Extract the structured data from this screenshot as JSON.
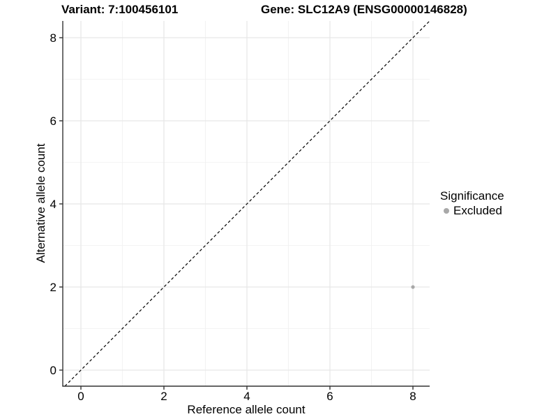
{
  "titles": {
    "variant": "Variant: 7:100456101",
    "gene": "Gene: SLC12A9 (ENSG00000146828)"
  },
  "chart_data": {
    "type": "scatter",
    "title": "Variant: 7:100456101",
    "subtitle": "Gene: SLC12A9 (ENSG00000146828)",
    "xlabel": "Reference allele count",
    "ylabel": "Alternative allele count",
    "xlim": [
      -0.437,
      8.403
    ],
    "ylim": [
      -0.387,
      8.403
    ],
    "xticks": [
      0,
      2,
      4,
      6,
      8
    ],
    "yticks": [
      0,
      2,
      4,
      6,
      8
    ],
    "minor_xticks": [
      1,
      3,
      5,
      7
    ],
    "minor_yticks": [
      1,
      3,
      5,
      7
    ],
    "grid": true,
    "reference_line": {
      "type": "identity",
      "style": "dashed",
      "color": "#000000"
    },
    "series": [
      {
        "name": "Excluded",
        "color": "#a8a8a8",
        "points": [
          {
            "x": 8,
            "y": 2
          }
        ]
      }
    ],
    "legend": {
      "title": "Significance",
      "position": "right",
      "items": [
        {
          "label": "Excluded",
          "color": "#a8a8a8"
        }
      ]
    },
    "colors": {
      "axis_line": "#333333",
      "tick_label": "#000000",
      "grid_major": "#e6e6e6",
      "grid_minor": "#f0f0f0",
      "background": "#ffffff"
    }
  }
}
